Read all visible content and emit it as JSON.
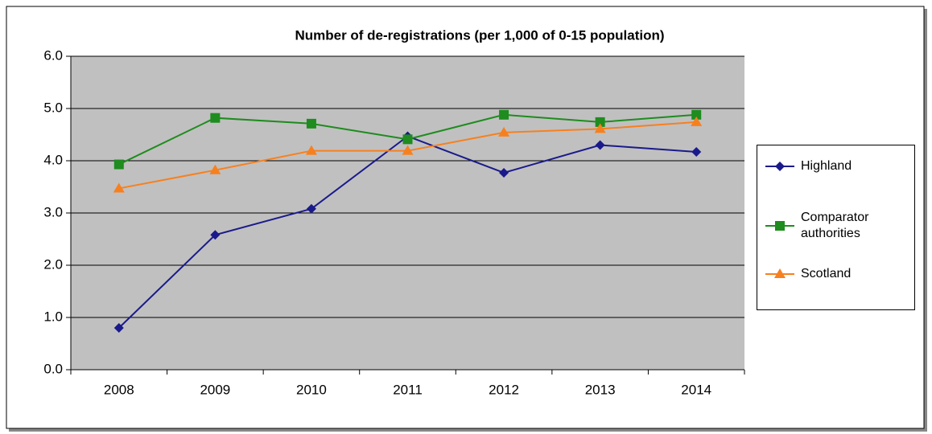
{
  "chart_data": {
    "type": "line",
    "title": "Number of de-registrations (per 1,000 of 0-15 population)",
    "categories": [
      "2008",
      "2009",
      "2010",
      "2011",
      "2012",
      "2013",
      "2014"
    ],
    "series": [
      {
        "name": "Highland",
        "color": "#1a1a8c",
        "marker": "diamond",
        "values": [
          0.8,
          2.58,
          3.08,
          4.47,
          3.77,
          4.3,
          4.17
        ]
      },
      {
        "name": "Comparator authorities",
        "color": "#1e8c1e",
        "marker": "square",
        "values": [
          3.93,
          4.82,
          4.71,
          4.41,
          4.88,
          4.74,
          4.88
        ]
      },
      {
        "name": "Scotland",
        "color": "#f7801e",
        "marker": "triangle",
        "values": [
          3.47,
          3.82,
          4.19,
          4.19,
          4.54,
          4.61,
          4.74
        ]
      }
    ],
    "ylim": [
      0,
      6
    ],
    "yticks": [
      {
        "value": 0,
        "label": "0.0"
      },
      {
        "value": 1,
        "label": "1.0"
      },
      {
        "value": 2,
        "label": "2.0"
      },
      {
        "value": 3,
        "label": "3.0"
      },
      {
        "value": 4,
        "label": "4.0"
      },
      {
        "value": 5,
        "label": "5.0"
      },
      {
        "value": 6,
        "label": "6.0"
      }
    ],
    "grid": true,
    "legend": "right"
  }
}
